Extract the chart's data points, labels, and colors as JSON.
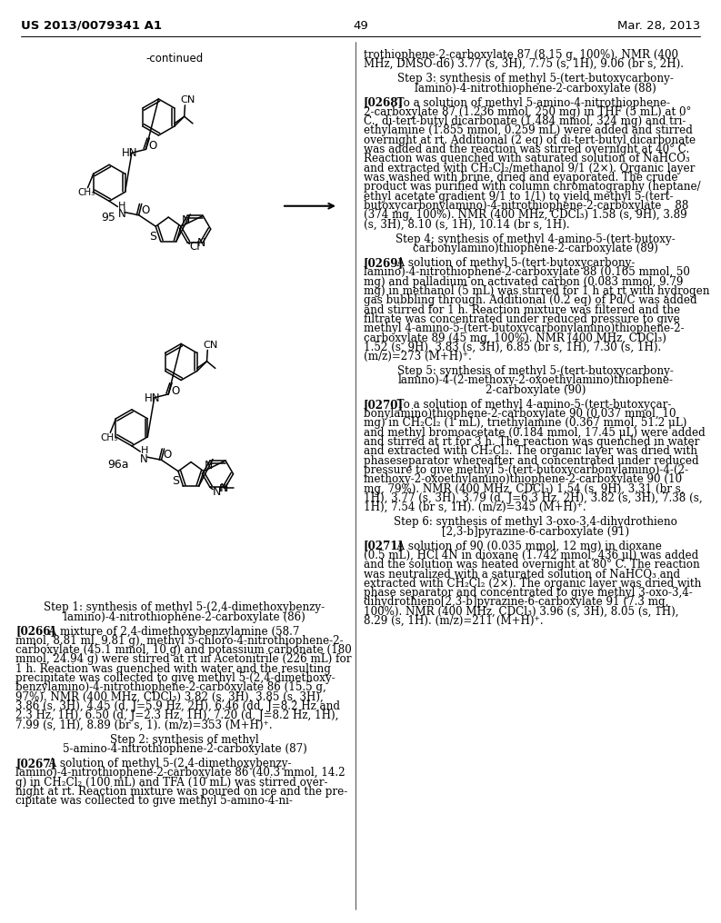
{
  "page_number": "49",
  "patent_number": "US 2013/0079341 A1",
  "date": "Mar. 28, 2013",
  "background_color": "#ffffff",
  "right_col_lines": [
    [
      "trothiophene-2-carboxylate 87 (8.15 g, 100%). NMR (400",
      "normal"
    ],
    [
      "MHz, DMSO-d6) 3.77 (s, 3H), 7.75 (s, 1H), 9.06 (br s, 2H).",
      "normal"
    ],
    [
      "",
      "gap"
    ],
    [
      "Step 3: synthesis of methyl 5-(tert-butoxycarbony-",
      "center"
    ],
    [
      "lamino)-4-nitrothiophene-2-carboxylate (88)",
      "center"
    ],
    [
      "",
      "gap"
    ],
    [
      "[0268]",
      "para",
      "  To a solution of methyl 5-amino-4-nitrothiophene-"
    ],
    [
      "2-carboxylate 87 (1.236 mmol, 250 mg) in THF (5 mL) at 0°",
      "normal"
    ],
    [
      "C., di-tert-butyl dicarbonate (1.484 mmol, 324 mg) and tri-",
      "normal"
    ],
    [
      "ethylamine (1.855 mmol, 0.259 mL) were added and stirred",
      "normal"
    ],
    [
      "overnight at rt. Additional (2 eq) of di-tert-butyl dicarbonate",
      "normal"
    ],
    [
      "was added and the reaction was stirred overnight at 40° C.",
      "normal"
    ],
    [
      "Reaction was quenched with saturated solution of NaHCO₃",
      "normal"
    ],
    [
      "and extracted with CH₂Cl₂/methanol 9/1 (2×). Organic layer",
      "normal"
    ],
    [
      "was washed with brine, dried and evaporated. The crude",
      "normal"
    ],
    [
      "product was purified with column chromatography (heptane/",
      "normal"
    ],
    [
      "ethyl acetate gradient 9/1 to 1/1) to yield methyl 5-(tert-",
      "normal"
    ],
    [
      "butoxycarbonylamino)-4-nitrothiophene-2-carboxylate    88",
      "normal"
    ],
    [
      "(374 mg, 100%). NMR (400 MHz, CDCl₃) 1.58 (s, 9H), 3.89",
      "normal"
    ],
    [
      "(s, 3H), 8.10 (s, 1H), 10.14 (br s, 1H).",
      "normal"
    ],
    [
      "",
      "gap"
    ],
    [
      "Step 4: synthesis of methyl 4-amino-5-(tert-butoxy-",
      "center"
    ],
    [
      "carbonylamino)thiophene-2-carboxylate (89)",
      "center"
    ],
    [
      "",
      "gap"
    ],
    [
      "[0269]",
      "para",
      "  A solution of methyl 5-(tert-butoxycarbony-"
    ],
    [
      "lamino)-4-nitrothiophene-2-carboxylate 88 (0.165 mmol, 50",
      "normal"
    ],
    [
      "mg) and palladium on activated carbon (0.083 mmol, 9.79",
      "normal"
    ],
    [
      "mg) in methanol (5 mL) was stirred for 1 h at rt with hydrogen",
      "normal"
    ],
    [
      "gas bubbling through. Additional (0.2 eq) of Pd/C was added",
      "normal"
    ],
    [
      "and stirred for 1 h. Reaction mixture was filtered and the",
      "normal"
    ],
    [
      "filtrate was concentrated under reduced pressure to give",
      "normal"
    ],
    [
      "methyl 4-amino-5-(tert-butoxycarbonylamino)thiophene-2-",
      "normal"
    ],
    [
      "carboxylate 89 (45 mg, 100%). NMR (400 MHz, CDCl₃)",
      "normal"
    ],
    [
      "1.52 (s, 9H), 3.83 (s, 3H), 6.85 (br s, 1H), 7.30 (s, 1H).",
      "normal"
    ],
    [
      "(m/z)=273 (M+H)⁺.",
      "normal"
    ],
    [
      "",
      "gap"
    ],
    [
      "Step 5: synthesis of methyl 5-(tert-butoxycarbony-",
      "center"
    ],
    [
      "lamino)-4-(2-methoxy-2-oxoethylamino)thiophene-",
      "center"
    ],
    [
      "2-carboxylate (90)",
      "center"
    ],
    [
      "",
      "gap"
    ],
    [
      "[0270]",
      "para",
      "  To a solution of methyl 4-amino-5-(tert-butoxycar-"
    ],
    [
      "bonylamino)thiophene-2-carboxylate 90 (0.037 mmol, 10",
      "normal"
    ],
    [
      "mg) in CH₂Cl₂ (1 mL), triethylamine (0.367 mmol, 51.2 μL)",
      "normal"
    ],
    [
      "and methyl bromoacetate (0.184 mmol, 17.45 μL) were added",
      "normal"
    ],
    [
      "and stirred at rt for 3 h. The reaction was quenched in water",
      "normal"
    ],
    [
      "and extracted with CH₂Cl₂. The organic layer was dried with",
      "normal"
    ],
    [
      "phaseseparator whereafter and concentrated under reduced",
      "normal"
    ],
    [
      "pressure to give methyl 5-(tert-butoxycarbonylamino)-4-(2-",
      "normal"
    ],
    [
      "methoxy-2-oxoethylamino)thiophene-2-carboxylate 90 (10",
      "normal"
    ],
    [
      "mg, 79%). NMR (400 MHz, CDCl₃) 1.54 (s, 9H), 3.31 (br s,",
      "normal"
    ],
    [
      "1H), 3.77 (s, 3H), 3.79 (d, J=6.3 Hz, 2H), 3.82 (s, 3H), 7.38 (s,",
      "normal"
    ],
    [
      "1H), 7.54 (br s, 1H). (m/z)=345 (M+H)⁺.",
      "normal"
    ],
    [
      "",
      "gap"
    ],
    [
      "Step 6: synthesis of methyl 3-oxo-3,4-dihydrothieno",
      "center"
    ],
    [
      "[2,3-b]pyrazine-6-carboxylate (91)",
      "center"
    ],
    [
      "",
      "gap"
    ],
    [
      "[0271]",
      "para",
      "  A solution of 90 (0.035 mmol, 12 mg) in dioxane"
    ],
    [
      "(0.5 mL), HCl 4N in dioxane (1.742 mmol, 436 μl) was added",
      "normal"
    ],
    [
      "and the solution was heated overnight at 80° C. The reaction",
      "normal"
    ],
    [
      "was neutralized with a saturated solution of NaHCO₃ and",
      "normal"
    ],
    [
      "extracted with CH₂Cl₂ (2×). The organic layer was dried with",
      "normal"
    ],
    [
      "phase separator and concentrated to give methyl 3-oxo-3,4-",
      "normal"
    ],
    [
      "dihydrothieno[2,3-b]pyrazine-6-carboxylate 91 (7.3 mg,",
      "normal"
    ],
    [
      "100%). NMR (400 MHz, CDCl₃) 3.96 (s, 3H), 8.05 (s, 1H),",
      "normal"
    ],
    [
      "8.29 (s, 1H). (m/z)=211 (M+H)⁺.",
      "normal"
    ]
  ],
  "left_col_lines": [
    [
      "Step 1: synthesis of methyl 5-(2,4-dimethoxybenzy-",
      "center"
    ],
    [
      "lamino)-4-nitrothiophene-2-carboxylate (86)",
      "center"
    ],
    [
      "",
      "gap"
    ],
    [
      "[0266]",
      "para",
      "  A mixture of 2,4-dimethoxybenzylamine (58.7"
    ],
    [
      "mmol, 8.81 ml, 9.81 g), methyl 5-chloro-4-nitrothiophene-2-",
      "normal"
    ],
    [
      "carboxylate (45.1 mmol, 10 g) and potassium carbonate (180",
      "normal"
    ],
    [
      "mmol, 24.94 g) were stirred at rt in Acetonitrile (226 mL) for",
      "normal"
    ],
    [
      "1 h. Reaction was quenched with water and the resulting",
      "normal"
    ],
    [
      "precipitate was collected to give methyl 5-(2,4-dimethoxy-",
      "normal"
    ],
    [
      "benzylamino)-4-nitrothiophene-2-carboxylate 86 (15.5 g,",
      "normal"
    ],
    [
      "97%). NMR (400 MHz, CDCl₃) 3.82 (s, 3H), 3.85 (s, 3H),",
      "normal"
    ],
    [
      "3.86 (s, 3H), 4.45 (d, J=5.9 Hz, 2H), 6.46 (dd, J=8.2 Hz and",
      "normal"
    ],
    [
      "2.3 Hz, 1H), 6.50 (d, J=2.3 Hz, 1H), 7.20 (d, J=8.2 Hz, 1H),",
      "normal"
    ],
    [
      "7.99 (s, 1H), 8.89 (br s, 1). (m/z)=353 (M+H)⁺.",
      "normal"
    ],
    [
      "",
      "gap"
    ],
    [
      "Step 2: synthesis of methyl",
      "center"
    ],
    [
      "5-amino-4-nitrothiophene-2-carboxylate (87)",
      "center"
    ],
    [
      "",
      "gap"
    ],
    [
      "[0267]",
      "para",
      "  A solution of methyl 5-(2,4-dimethoxybenzy-"
    ],
    [
      "lamino)-4-nitrothiophene-2-carboxylate 86 (40.3 mmol, 14.2",
      "normal"
    ],
    [
      "g) in CH₂Cl₂ (100 mL) and TFA (10 mL) was stirred over-",
      "normal"
    ],
    [
      "night at rt. Reaction mixture was poured on ice and the pre-",
      "normal"
    ],
    [
      "cipitate was collected to give methyl 5-amino-4-ni-",
      "normal"
    ]
  ]
}
